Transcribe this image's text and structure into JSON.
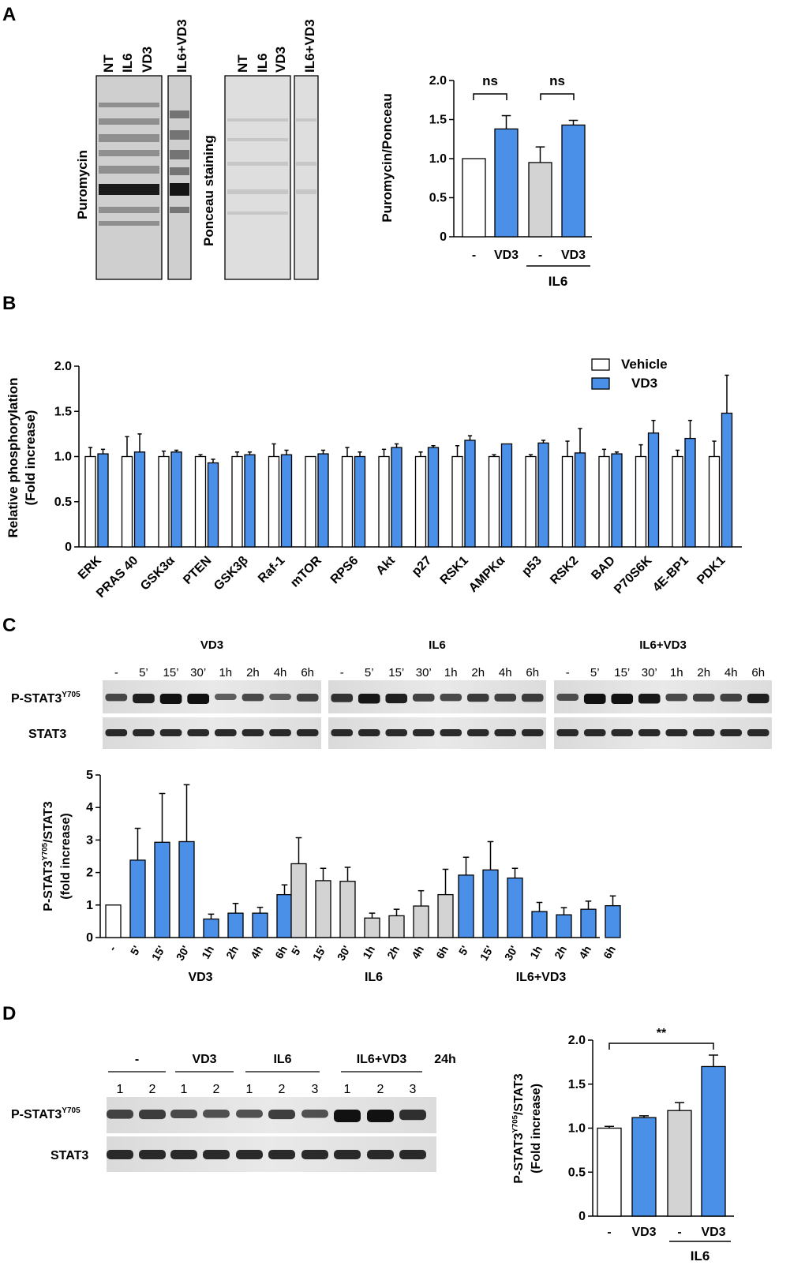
{
  "colors": {
    "white_bar": "#ffffff",
    "vd3_bar": "#4a90e8",
    "il6_bar": "#d3d3d3",
    "blot_bg": "#e6e6e6"
  },
  "panelA": {
    "letter": "A",
    "puro_label": "Puromycin",
    "ponceau_label": "Ponceau staining",
    "lanes_main": [
      "NT",
      "IL6",
      "VD3"
    ],
    "lane_extra": "IL6+VD3"
  },
  "panelB": {
    "letter": "B"
  },
  "panelC": {
    "letter": "C",
    "groups": [
      "VD3",
      "IL6",
      "IL6+VD3"
    ],
    "times": [
      "-",
      "5’",
      "15’",
      "30’",
      "1h",
      "2h",
      "4h",
      "6h"
    ],
    "row1": "P-STAT3",
    "row1_sup": "Y705",
    "row2": "STAT3"
  },
  "panelD": {
    "letter": "D",
    "groups": [
      "-",
      "VD3",
      "IL6",
      "IL6+VD3"
    ],
    "time": "24h",
    "lanes": [
      "1",
      "2",
      "1",
      "2",
      "1",
      "2",
      "3",
      "1",
      "2",
      "3"
    ],
    "row1": "P-STAT3",
    "row1_sup": "Y705",
    "row2": "STAT3"
  },
  "chart_data": [
    {
      "id": "A",
      "type": "bar",
      "categories": [
        "-",
        "VD3",
        "-",
        "VD3"
      ],
      "values": [
        1.0,
        1.38,
        0.95,
        1.43
      ],
      "errors": [
        0,
        0.17,
        0.2,
        0.06
      ],
      "colors": [
        "white",
        "vd3",
        "il6",
        "vd3"
      ],
      "ylabel": "Puromycin/Ponceau",
      "ylim": [
        0,
        2.0
      ],
      "yticks": [
        "0",
        "0.5",
        "1.0",
        "1.5",
        "2.0"
      ],
      "group_label": "IL6",
      "significance": [
        "ns",
        "ns"
      ]
    },
    {
      "id": "B",
      "type": "bar",
      "categories": [
        "ERK",
        "PRAS 40",
        "GSK3α",
        "PTEN",
        "GSK3β",
        "Raf-1",
        "mTOR",
        "RPS6",
        "Akt",
        "p27",
        "RSK1",
        "AMPKα",
        "p53",
        "RSK2",
        "BAD",
        "P70S6K",
        "4E-BP1",
        "PDK1"
      ],
      "series": [
        {
          "name": "Vehicle",
          "values": [
            1,
            1,
            1,
            1,
            1,
            1,
            1,
            1,
            1,
            1,
            1,
            1,
            1,
            1,
            1,
            1,
            1,
            1
          ],
          "errors": [
            0.1,
            0.22,
            0.06,
            0.02,
            0.05,
            0.14,
            0,
            0.1,
            0.08,
            0.05,
            0.12,
            0.02,
            0.02,
            0.17,
            0.08,
            0.13,
            0.07,
            0.17
          ]
        },
        {
          "name": "VD3",
          "values": [
            1.03,
            1.05,
            1.05,
            0.93,
            1.02,
            1.02,
            1.03,
            1.0,
            1.1,
            1.1,
            1.18,
            1.14,
            1.15,
            1.04,
            1.03,
            1.26,
            1.2,
            1.48
          ],
          "errors": [
            0.05,
            0.2,
            0.02,
            0.04,
            0.03,
            0.05,
            0.04,
            0.05,
            0.04,
            0.02,
            0.05,
            0,
            0.03,
            0.27,
            0.02,
            0.14,
            0.2,
            0.42
          ]
        }
      ],
      "ylabel": "Relative phosphorylation",
      "ylabel2": "(Fold increase)",
      "ylim": [
        0,
        2.0
      ],
      "yticks": [
        "0",
        "0.5",
        "1.0",
        "1.5",
        "2.0"
      ]
    },
    {
      "id": "C",
      "type": "bar",
      "groups": [
        {
          "name": "VD3",
          "categories": [
            "-",
            "5'",
            "15'",
            "30'",
            "1h",
            "2h",
            "4h",
            "6h"
          ],
          "values": [
            1.0,
            2.38,
            2.93,
            2.95,
            0.57,
            0.75,
            0.75,
            1.32
          ],
          "errors": [
            0,
            0.98,
            1.5,
            1.75,
            0.15,
            0.3,
            0.18,
            0.3
          ],
          "colors": [
            "white",
            "vd3",
            "vd3",
            "vd3",
            "vd3",
            "vd3",
            "vd3",
            "vd3"
          ]
        },
        {
          "name": "IL6",
          "categories": [
            "5'",
            "15'",
            "30'",
            "1h",
            "2h",
            "4h",
            "6h"
          ],
          "values": [
            2.27,
            1.75,
            1.73,
            0.6,
            0.67,
            0.97,
            1.32
          ],
          "errors": [
            0.8,
            0.38,
            0.43,
            0.15,
            0.2,
            0.47,
            0.78
          ],
          "colors": [
            "il6",
            "il6",
            "il6",
            "il6",
            "il6",
            "il6",
            "il6"
          ]
        },
        {
          "name": "IL6+VD3",
          "categories": [
            "5'",
            "15'",
            "30'",
            "1h",
            "2h",
            "4h",
            "6h"
          ],
          "values": [
            1.92,
            2.08,
            1.83,
            0.8,
            0.7,
            0.87,
            0.98
          ],
          "errors": [
            0.55,
            0.87,
            0.3,
            0.28,
            0.22,
            0.25,
            0.3
          ],
          "colors": [
            "vd3",
            "vd3",
            "vd3",
            "vd3",
            "vd3",
            "vd3",
            "vd3"
          ]
        }
      ],
      "ylabel": "P-STAT3",
      "ylabel_sup": "Y705",
      "ylabel_suffix": "/STAT3",
      "ylabel2": "(fold increase)",
      "ylim": [
        0,
        5
      ],
      "yticks": [
        "0",
        "1",
        "2",
        "3",
        "4",
        "5"
      ]
    },
    {
      "id": "D",
      "type": "bar",
      "categories": [
        "-",
        "VD3",
        "-",
        "VD3"
      ],
      "values": [
        1.0,
        1.12,
        1.2,
        1.7
      ],
      "errors": [
        0.02,
        0.02,
        0.09,
        0.13
      ],
      "colors": [
        "white",
        "vd3",
        "il6",
        "vd3"
      ],
      "ylabel": "P-STAT3",
      "ylabel_sup": "Y705",
      "ylabel_suffix": "/STAT3",
      "ylabel2": "(Fold increase)",
      "ylim": [
        0,
        2.0
      ],
      "yticks": [
        "0",
        "0.5",
        "1.0",
        "1.5",
        "2.0"
      ],
      "group_label": "IL6",
      "significance": [
        "**"
      ]
    }
  ]
}
